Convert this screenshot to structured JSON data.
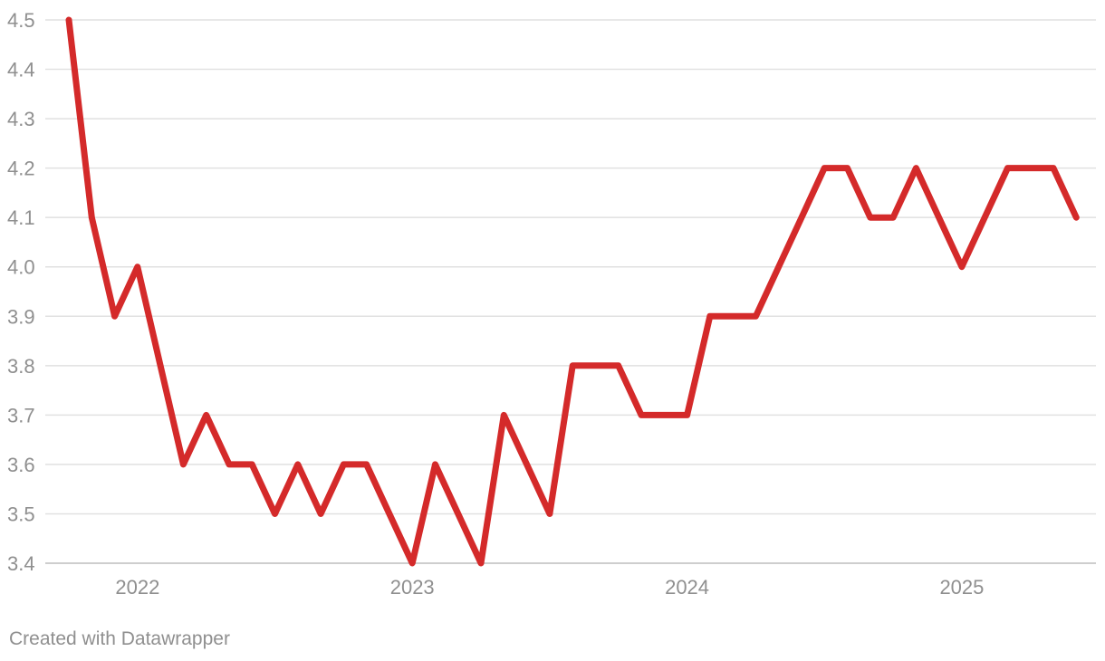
{
  "chart_data": {
    "type": "line",
    "x": [
      "2021-10",
      "2021-11",
      "2021-12",
      "2022-01",
      "2022-02",
      "2022-03",
      "2022-04",
      "2022-05",
      "2022-06",
      "2022-07",
      "2022-08",
      "2022-09",
      "2022-10",
      "2022-11",
      "2022-12",
      "2023-01",
      "2023-02",
      "2023-03",
      "2023-04",
      "2023-05",
      "2023-06",
      "2023-07",
      "2023-08",
      "2023-09",
      "2023-10",
      "2023-11",
      "2023-12",
      "2024-01",
      "2024-02",
      "2024-03",
      "2024-04",
      "2024-05",
      "2024-06",
      "2024-07",
      "2024-08",
      "2024-09",
      "2024-10",
      "2024-11",
      "2024-12",
      "2025-01",
      "2025-02",
      "2025-03",
      "2025-04",
      "2025-05",
      "2025-06"
    ],
    "series": [
      {
        "color": "#d42a2a",
        "values": [
          4.5,
          4.1,
          3.9,
          4.0,
          3.8,
          3.6,
          3.7,
          3.6,
          3.6,
          3.5,
          3.6,
          3.5,
          3.6,
          3.6,
          3.5,
          3.4,
          3.6,
          3.5,
          3.4,
          3.7,
          3.6,
          3.5,
          3.8,
          3.8,
          3.8,
          3.7,
          3.7,
          3.7,
          3.9,
          3.9,
          3.9,
          4.0,
          4.1,
          4.2,
          4.2,
          4.1,
          4.1,
          4.2,
          4.1,
          4.0,
          4.1,
          4.2,
          4.2,
          4.2,
          4.1
        ]
      }
    ],
    "ylim": [
      3.4,
      4.5
    ],
    "yticks": [
      "4.5",
      "4.4",
      "4.3",
      "4.2",
      "4.1",
      "4.0",
      "3.9",
      "3.8",
      "3.7",
      "3.6",
      "3.5",
      "3.4"
    ],
    "xticks": [
      "2022",
      "2023",
      "2024",
      "2025"
    ],
    "grid": true
  },
  "footer": {
    "credit": "Created with Datawrapper"
  }
}
